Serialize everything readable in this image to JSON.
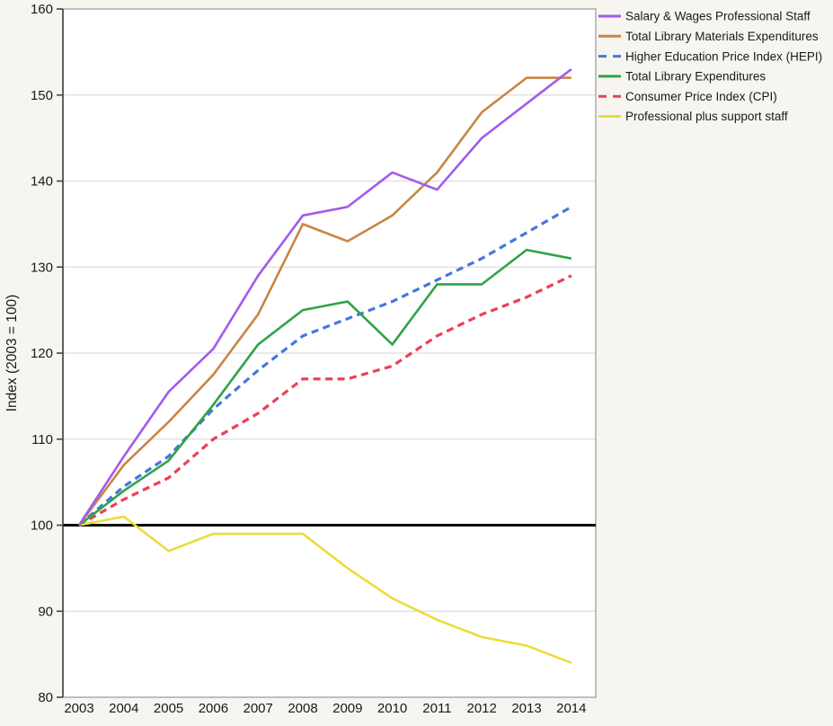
{
  "page": {
    "background": "#F7F5F0"
  },
  "chart_data": {
    "type": "line",
    "title": "",
    "xlabel": "",
    "ylabel": "Index (2003 = 100)",
    "x": [
      2003,
      2004,
      2005,
      2006,
      2007,
      2008,
      2009,
      2010,
      2011,
      2012,
      2013,
      2014
    ],
    "ylim": [
      80,
      160
    ],
    "yticks": [
      80,
      90,
      100,
      110,
      120,
      130,
      140,
      150,
      160
    ],
    "baseline": 100,
    "grid": "horizontal",
    "legend_position": "top-right-outside",
    "series": [
      {
        "id": "salary-wages-professional-staff",
        "name": "Salary & Wages Professional Staff",
        "color": "#A35BEA",
        "style": "solid",
        "values": [
          100,
          108,
          115.5,
          120.5,
          129,
          136,
          137,
          141,
          139,
          145,
          149,
          153
        ]
      },
      {
        "id": "total-library-materials-expenditures",
        "name": "Total Library Materials Expenditures",
        "color": "#C98544",
        "style": "solid",
        "values": [
          100,
          107,
          112,
          117.5,
          124.5,
          135,
          133,
          136,
          141,
          148,
          152,
          152
        ]
      },
      {
        "id": "higher-education-price-index-hepi",
        "name": "Higher Education Price Index (HEPI)",
        "color": "#4478DC",
        "style": "dashed",
        "values": [
          100,
          104.5,
          108,
          113.5,
          118,
          122,
          124,
          126,
          128.5,
          131,
          134,
          137
        ]
      },
      {
        "id": "total-library-expenditures",
        "name": "Total Library Expenditures",
        "color": "#2EA347",
        "style": "solid",
        "values": [
          100,
          104,
          107.5,
          114,
          121,
          125,
          126,
          121,
          128,
          128,
          132,
          131
        ]
      },
      {
        "id": "consumer-price-index-cpi",
        "name": "Consumer Price Index (CPI)",
        "color": "#EC4057",
        "style": "dashed",
        "values": [
          100,
          103,
          105.5,
          110,
          113,
          117,
          117,
          118.5,
          122,
          124.5,
          126.5,
          129
        ]
      },
      {
        "id": "professional-plus-support-staff",
        "name": "Professional plus support staff",
        "color": "#EBDC3C",
        "style": "solid",
        "values": [
          100,
          101,
          97,
          99,
          99,
          99,
          95,
          91.5,
          89,
          87,
          86,
          84
        ]
      }
    ],
    "colors": {
      "plot_bg": "#FFFFFF",
      "grid": "#DEDEDE",
      "border": "#ABABAB",
      "axis": "#444444",
      "baseline": "#000000",
      "text": "#1A1A1A"
    }
  }
}
